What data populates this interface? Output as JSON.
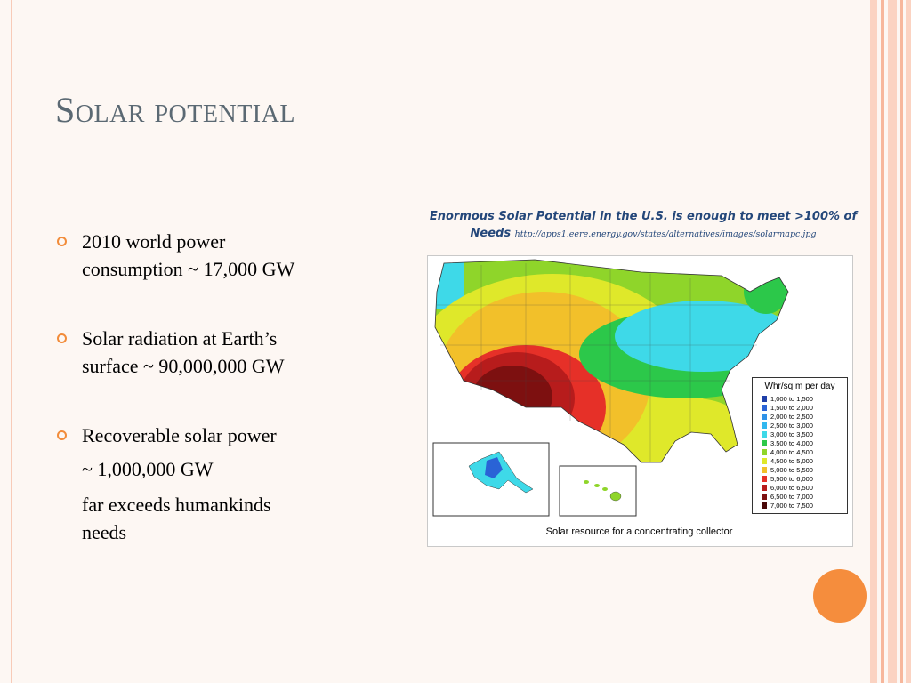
{
  "slide": {
    "title": "Solar potential",
    "bullets": [
      {
        "lines": [
          "2010 world power",
          "consumption ~ 17,000 GW"
        ]
      },
      {
        "lines": [
          "Solar radiation at Earth’s",
          "surface ~ 90,000,000 GW"
        ]
      },
      {
        "lines": [
          "Recoverable solar power"
        ]
      }
    ],
    "continuation": [
      "~ 1,000,000 GW",
      "far exceeds humankinds",
      "needs"
    ]
  },
  "figure": {
    "caption_bold": "Enormous Solar Potential in the U.S. is enough to meet >100% of Needs",
    "caption_url": "http://apps1.eere.energy.gov/states/alternatives/images/solarmapc.jpg",
    "map_note": "Solar resource for a concentrating collector",
    "legend": {
      "title": "Whr/sq m per day",
      "items": [
        {
          "label": "1,000 to 1,500",
          "color": "#1f3fa8"
        },
        {
          "label": "1,500 to 2,000",
          "color": "#2a63d6"
        },
        {
          "label": "2,000 to 2,500",
          "color": "#2f92e8"
        },
        {
          "label": "2,500 to 3,000",
          "color": "#32b8ef"
        },
        {
          "label": "3,000 to 3,500",
          "color": "#3ed9e8"
        },
        {
          "label": "3,500 to 4,000",
          "color": "#2cc84a"
        },
        {
          "label": "4,000 to 4,500",
          "color": "#8fd52a"
        },
        {
          "label": "4,500 to 5,000",
          "color": "#dfe82a"
        },
        {
          "label": "5,000 to 5,500",
          "color": "#f2c02a"
        },
        {
          "label": "5,500 to 6,000",
          "color": "#e63028"
        },
        {
          "label": "6,000 to 6,500",
          "color": "#b71c1c"
        },
        {
          "label": "6,500 to 7,000",
          "color": "#7d1010"
        },
        {
          "label": "7,000 to 7,500",
          "color": "#4a0808"
        }
      ]
    }
  },
  "theme": {
    "accent": "#f58d3d",
    "title_color": "#5b6973",
    "caption_color": "#24477a"
  }
}
